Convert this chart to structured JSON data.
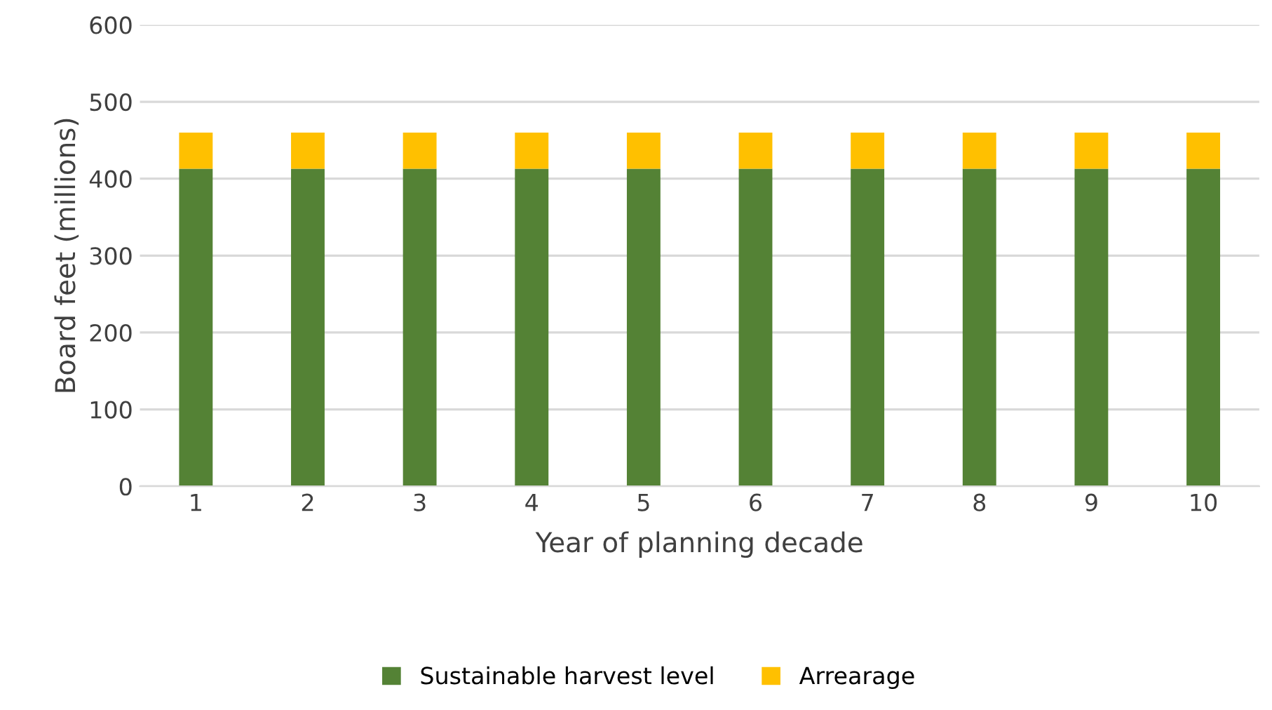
{
  "chart_data": {
    "type": "bar",
    "stacked": true,
    "xlabel": "Year of planning decade",
    "ylabel": "Board feet (millions)",
    "categories": [
      "1",
      "2",
      "3",
      "4",
      "5",
      "6",
      "7",
      "8",
      "9",
      "10"
    ],
    "series": [
      {
        "name": "Sustainable harvest level",
        "color": "#548235",
        "values": [
          413,
          413,
          413,
          413,
          413,
          413,
          413,
          413,
          413,
          413
        ]
      },
      {
        "name": "Arrearage",
        "color": "#ffc000",
        "values": [
          47,
          47,
          47,
          47,
          47,
          47,
          47,
          47,
          47,
          47
        ]
      }
    ],
    "ylim": [
      0,
      600
    ],
    "yticks": [
      0,
      100,
      200,
      300,
      400,
      500,
      600
    ],
    "grid": "y",
    "legend": "bottom"
  }
}
